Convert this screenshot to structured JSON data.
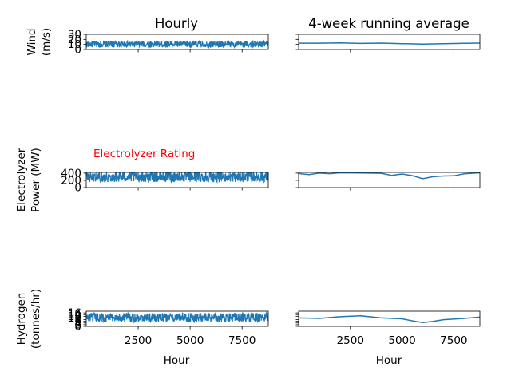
{
  "chart_data": {
    "type": "line",
    "columns": {
      "left_title": "Hourly",
      "right_title": "4-week running average"
    },
    "x_axis": {
      "label": "Hour",
      "range": [
        0,
        8760
      ],
      "ticks": [
        2500,
        5000,
        7500
      ],
      "tick_labels": [
        "2500",
        "5000",
        "7500"
      ]
    },
    "annotation": {
      "text": "Electrolyzer Rating",
      "color": "#ff0000"
    },
    "line_color": "#1f77b4",
    "rows": [
      {
        "ylabel_lines": [
          "Wind",
          "(m/s)"
        ],
        "ylim": [
          0,
          30
        ],
        "yticks": [
          0,
          10,
          20,
          30
        ],
        "ytick_labels": [
          "0",
          "10",
          "20",
          "30"
        ],
        "hourly": {
          "mean": 10.5,
          "amplitude": 6.5,
          "max": 25,
          "min": 3
        },
        "running_average": {
          "x": [
            0,
            1000,
            2000,
            3000,
            4000,
            5000,
            6000,
            7000,
            8000,
            8760
          ],
          "y": [
            12.5,
            12.4,
            13.0,
            12.0,
            12.6,
            11.5,
            10.8,
            11.3,
            12.2,
            12.7
          ],
          "ylim": [
            0,
            30
          ]
        }
      },
      {
        "ylabel_lines": [
          "Electrolyzer",
          "Power (MW)"
        ],
        "ylim": [
          0,
          420
        ],
        "yticks": [
          0,
          200,
          400
        ],
        "ytick_labels": [
          "0",
          "200",
          "400"
        ],
        "hourly": {
          "mean": 300,
          "amplitude": 150,
          "max": 420,
          "min": 0
        },
        "running_average": {
          "x": [
            0,
            500,
            1000,
            1500,
            2000,
            3000,
            4000,
            4500,
            5000,
            5500,
            6000,
            6500,
            7000,
            7500,
            8000,
            8760
          ],
          "y": [
            390,
            360,
            400,
            385,
            410,
            405,
            395,
            335,
            375,
            330,
            245,
            300,
            320,
            325,
            380,
            410
          ],
          "ylim": [
            0,
            420
          ]
        }
      },
      {
        "ylabel_lines": [
          "Hydrogen",
          "(tonnes/hr)"
        ],
        "ylim": [
          0,
          18
        ],
        "yticks": [
          0,
          2,
          4,
          6,
          8,
          10,
          12,
          14,
          16
        ],
        "ytick_labels": [
          "0",
          "2",
          "4",
          "6",
          "8",
          "10",
          "12",
          "14",
          "16"
        ],
        "hourly": {
          "mean": 10.5,
          "amplitude": 5.5,
          "max": 17,
          "min": 0
        },
        "running_average": {
          "x": [
            0,
            1000,
            2000,
            3000,
            4000,
            5000,
            5500,
            6000,
            6500,
            7000,
            8000,
            8760
          ],
          "y": [
            10.0,
            9.5,
            11.5,
            12.5,
            10.0,
            9.0,
            6.5,
            4.5,
            6.0,
            8.0,
            9.5,
            11.0
          ],
          "ylim": [
            0,
            18
          ]
        }
      }
    ]
  }
}
